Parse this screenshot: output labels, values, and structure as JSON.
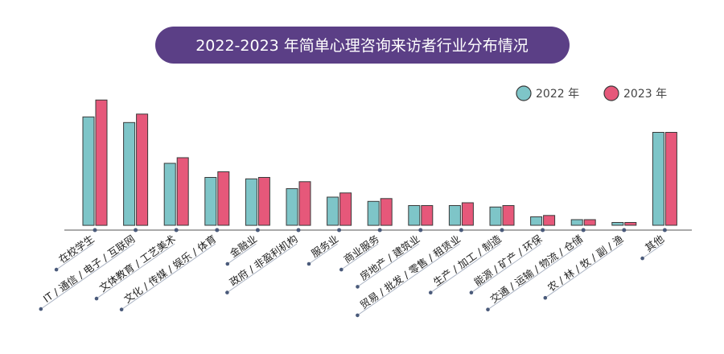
{
  "colors": {
    "title_bg": "#5b3f86",
    "series_2022": "#7ec5c8",
    "series_2023": "#e6587a",
    "bar_stroke": "#3a3a3a",
    "axis": "#555555",
    "marker": "#4a5a7a"
  },
  "chart_data": {
    "type": "bar",
    "title": "2022-2023 年简单心理咨询来访者行业分布情况",
    "legend_position": "top-right",
    "grid": false,
    "ylim": [
      0,
      100
    ],
    "categories": [
      "在校学生",
      "IT / 通信 / 电子 / 互联网",
      "文体教育 / 工艺美术",
      "文化 / 传媒 / 娱乐 / 体育",
      "金融业",
      "政府 / 非盈利机构",
      "服务业",
      "商业服务",
      "房地产 / 建筑业",
      "贸易 / 批发 / 零售 / 租赁业",
      "生产 / 加工 / 制造",
      "能源 / 矿产 / 环保",
      "交通 / 运输 / 物流 / 仓储",
      "农 / 林 / 牧 / 副 / 渔",
      "其他"
    ],
    "series": [
      {
        "name": "2022 年",
        "values": [
          77,
          73,
          44,
          34,
          33,
          26,
          20,
          17,
          14,
          14,
          13,
          6,
          4,
          2,
          66
        ]
      },
      {
        "name": "2023 年",
        "values": [
          89,
          79,
          48,
          38,
          34,
          31,
          23,
          19,
          14,
          16,
          14,
          7,
          4,
          2,
          66
        ]
      }
    ]
  }
}
